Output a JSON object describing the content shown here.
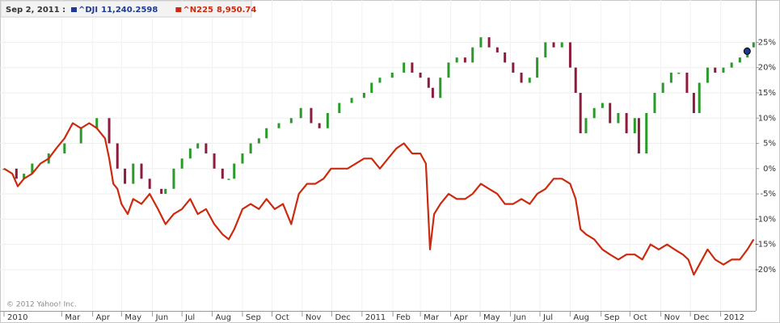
{
  "chart_data": {
    "type": "stock-comparison",
    "readout_date": "Sep 2, 2011 :",
    "copyright": "© 2012 Yahoo! Inc.",
    "xlim": [
      0,
      110
    ],
    "xticks": [
      {
        "value": 0,
        "label": "2010"
      },
      {
        "value": 8.4,
        "label": "Mar"
      },
      {
        "value": 12.9,
        "label": "Apr"
      },
      {
        "value": 17.1,
        "label": "May"
      },
      {
        "value": 21.6,
        "label": "Jun"
      },
      {
        "value": 25.9,
        "label": "Jul"
      },
      {
        "value": 30.3,
        "label": "Aug"
      },
      {
        "value": 34.7,
        "label": "Sep"
      },
      {
        "value": 39,
        "label": "Oct"
      },
      {
        "value": 43.4,
        "label": "Nov"
      },
      {
        "value": 47.7,
        "label": "Dec"
      },
      {
        "value": 52.1,
        "label": "2011"
      },
      {
        "value": 56.6,
        "label": "Feb"
      },
      {
        "value": 60.6,
        "label": "Mar"
      },
      {
        "value": 65,
        "label": "Apr"
      },
      {
        "value": 69.3,
        "label": "May"
      },
      {
        "value": 73.7,
        "label": "Jun"
      },
      {
        "value": 78,
        "label": "Jul"
      },
      {
        "value": 82.4,
        "label": "Aug"
      },
      {
        "value": 86.9,
        "label": "Sep"
      },
      {
        "value": 91.1,
        "label": "Oct"
      },
      {
        "value": 95.6,
        "label": "Nov"
      },
      {
        "value": 99.9,
        "label": "Dec"
      },
      {
        "value": 104.3,
        "label": "2012"
      }
    ],
    "ylim": [
      -28,
      32.5
    ],
    "yticks": [
      {
        "value": -20,
        "label": "-20%"
      },
      {
        "value": -15,
        "label": "-15%"
      },
      {
        "value": -10,
        "label": "-10%"
      },
      {
        "value": -5,
        "label": "-5%"
      },
      {
        "value": 0,
        "label": "0%"
      },
      {
        "value": 5,
        "label": "5%"
      },
      {
        "value": 10,
        "label": "10%"
      },
      {
        "value": 15,
        "label": "15%"
      },
      {
        "value": 20,
        "label": "20%"
      },
      {
        "value": 25,
        "label": "25%"
      }
    ],
    "grid": true,
    "series": [
      {
        "name": "^DJI",
        "readout": "11,240.2598",
        "style": "candles",
        "color": "#1f3a8f",
        "up_color": "#2a9a2a",
        "down_color": "#8b1c3c",
        "end_marker": true,
        "x": [
          0,
          1.8,
          2.9,
          4.1,
          6.5,
          8.8,
          11.2,
          13.5,
          15.3,
          16.5,
          17.6,
          18.8,
          20,
          21.2,
          22.9,
          23.5,
          24.7,
          25.9,
          27.1,
          28.2,
          29.4,
          30.6,
          31.8,
          32.7,
          33.5,
          34.7,
          35.9,
          37.1,
          38.2,
          40,
          41.8,
          43.2,
          44.7,
          45.9,
          47.1,
          48.8,
          50.6,
          52.4,
          53.5,
          54.7,
          56.5,
          58.2,
          59.4,
          60.6,
          61.8,
          62.4,
          63.5,
          64.7,
          65.9,
          67.1,
          68.2,
          69.4,
          70.6,
          71.8,
          72.9,
          74.1,
          75.3,
          76.5,
          77.6,
          78.8,
          80,
          81.2,
          82.4,
          83.2,
          83.9,
          84.7,
          85.9,
          87.1,
          88.2,
          89.4,
          90.6,
          91.8,
          92.4,
          93.5,
          94.7,
          95.9,
          97.1,
          98.2,
          99.4,
          100.4,
          101.2,
          102.4,
          103.5,
          104.7,
          105.9,
          107.1,
          108.2,
          109.1
        ],
        "values": [
          0,
          -2,
          -1,
          1,
          3,
          5,
          8,
          10,
          5,
          0,
          -3,
          1,
          -2,
          -4,
          -5,
          -4,
          0,
          2,
          4,
          5,
          3,
          0,
          -2,
          -2,
          1,
          3,
          5,
          6,
          8,
          9,
          10,
          12,
          9,
          8,
          11,
          13,
          14,
          15,
          17,
          18,
          19,
          21,
          19,
          18,
          16,
          14,
          18,
          21,
          22,
          21,
          24,
          26,
          24,
          23,
          21,
          19,
          17,
          18,
          22,
          25,
          24,
          25,
          20,
          15,
          7,
          10,
          12,
          13,
          9,
          11,
          7,
          10,
          3,
          11,
          15,
          17,
          19,
          19,
          15,
          11,
          17,
          20,
          19,
          20,
          21,
          22,
          24,
          25
        ]
      },
      {
        "name": "^N225",
        "readout": "8,950.74",
        "style": "line",
        "color": "#cc2a0f",
        "x": [
          0,
          1.2,
          2,
          2.9,
          4.1,
          5.3,
          6.5,
          7.6,
          8.8,
          10,
          11.2,
          12.4,
          13.5,
          14.7,
          15.3,
          15.9,
          16.5,
          17.1,
          18,
          18.8,
          20,
          21.2,
          22.4,
          23.5,
          24.7,
          25.9,
          27.1,
          28.2,
          29.4,
          30.6,
          31.8,
          32.7,
          33.5,
          34.7,
          35.9,
          37.1,
          38.2,
          39.4,
          40.6,
          41.8,
          42.9,
          44.1,
          45.3,
          46.5,
          47.6,
          48.8,
          50,
          51.2,
          52.4,
          53.5,
          54.7,
          55.9,
          57.1,
          58.2,
          59.4,
          60.6,
          61.4,
          62,
          62.6,
          63.5,
          64.7,
          65.9,
          67.1,
          68.2,
          69.4,
          70.6,
          71.8,
          72.9,
          74.1,
          75.3,
          76.5,
          77.6,
          78.8,
          80,
          81.2,
          82.4,
          83.2,
          83.9,
          84.7,
          85.9,
          87.1,
          88.2,
          89.4,
          90.6,
          91.8,
          92.9,
          94.1,
          95.3,
          96.5,
          97.6,
          98.8,
          99.6,
          100.4,
          101.2,
          102.4,
          103.5,
          104.7,
          105.9,
          107.1,
          108.2,
          109.1
        ],
        "values": [
          0,
          -1,
          -3.5,
          -2,
          -1,
          1,
          2,
          4,
          6,
          9,
          8,
          9,
          8,
          6,
          2,
          -3,
          -4,
          -7,
          -9,
          -6,
          -7,
          -5,
          -8,
          -11,
          -9,
          -8,
          -6,
          -9,
          -8,
          -11,
          -13,
          -14,
          -12,
          -8,
          -7,
          -8,
          -6,
          -8,
          -7,
          -11,
          -5,
          -3,
          -3,
          -2,
          0,
          0,
          0,
          1,
          2,
          2,
          0,
          2,
          4,
          5,
          3,
          3,
          1,
          -16,
          -9,
          -7,
          -5,
          -6,
          -6,
          -5,
          -3,
          -4,
          -5,
          -7,
          -7,
          -6,
          -7,
          -5,
          -4,
          -2,
          -2,
          -3,
          -6,
          -12,
          -13,
          -14,
          -16,
          -17,
          -18,
          -17,
          -17,
          -18,
          -15,
          -16,
          -15,
          -16,
          -17,
          -18,
          -21,
          -19,
          -16,
          -18,
          -19,
          -18,
          -18,
          -16,
          -14
        ]
      }
    ]
  }
}
